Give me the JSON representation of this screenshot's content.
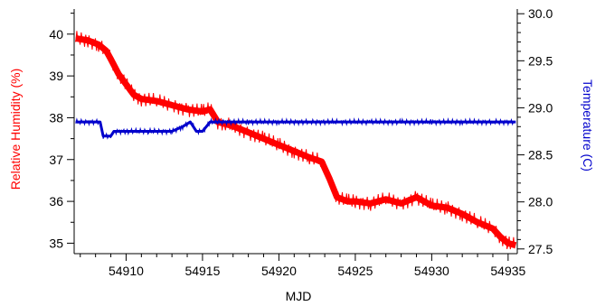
{
  "chart_data": {
    "type": "line",
    "xlabel": "MJD",
    "ylabel_left": "Relative Humidity (%)",
    "ylabel_right": "Temperature (C)",
    "xlim": [
      54906.6,
      54935.6
    ],
    "ylim_left": [
      34.75,
      40.6
    ],
    "ylim_right": [
      27.45,
      30.05
    ],
    "x_ticks": [
      "54910",
      "54915",
      "54920",
      "54925",
      "54930",
      "54935"
    ],
    "y_left_ticks": [
      "35",
      "36",
      "37",
      "38",
      "39",
      "40"
    ],
    "y_right_ticks": [
      "27.5",
      "28.0",
      "28.5",
      "29.0",
      "29.5",
      "30.0"
    ],
    "grid": false,
    "colors": {
      "humidity": "#ff0000",
      "temperature": "#0000cc",
      "axes": "#000000"
    },
    "series": [
      {
        "axis": "left",
        "color": "#ff0000",
        "x": [
          54906.7,
          54907.5,
          54908.2,
          54908.7,
          54909.0,
          54909.5,
          54910.0,
          54910.5,
          54911.0,
          54912.0,
          54913.0,
          54914.0,
          54915.0,
          54915.5,
          54916.0,
          54916.5,
          54917.0,
          54918.0,
          54919.0,
          54920.0,
          54921.0,
          54922.0,
          54922.8,
          54923.3,
          54923.8,
          54924.5,
          54925.0,
          54926.0,
          54927.0,
          54928.0,
          54929.0,
          54930.0,
          54931.0,
          54932.0,
          54933.0,
          54934.0,
          54934.5,
          54935.0,
          54935.5
        ],
        "y": [
          39.9,
          39.85,
          39.75,
          39.6,
          39.4,
          39.05,
          38.8,
          38.55,
          38.45,
          38.4,
          38.3,
          38.2,
          38.15,
          38.2,
          37.9,
          37.85,
          37.8,
          37.65,
          37.5,
          37.35,
          37.2,
          37.05,
          36.95,
          36.55,
          36.1,
          36.0,
          36.0,
          35.95,
          36.05,
          35.95,
          36.1,
          35.9,
          35.85,
          35.7,
          35.5,
          35.35,
          35.15,
          35.0,
          34.95
        ]
      },
      {
        "axis": "right",
        "color": "#0000cc",
        "x": [
          54906.7,
          54908.3,
          54908.5,
          54909.0,
          54909.2,
          54910.0,
          54911.5,
          54913.0,
          54913.7,
          54914.2,
          54914.6,
          54915.0,
          54915.5,
          54916.0,
          54918.0,
          54920.0,
          54922.0,
          54924.0,
          54926.0,
          54928.0,
          54930.0,
          54932.0,
          54934.0,
          54935.5
        ],
        "y": [
          28.85,
          28.85,
          28.7,
          28.7,
          28.75,
          28.75,
          28.75,
          28.75,
          28.8,
          28.85,
          28.75,
          28.75,
          28.85,
          28.85,
          28.85,
          28.85,
          28.85,
          28.85,
          28.85,
          28.85,
          28.85,
          28.85,
          28.85,
          28.85
        ]
      }
    ]
  }
}
